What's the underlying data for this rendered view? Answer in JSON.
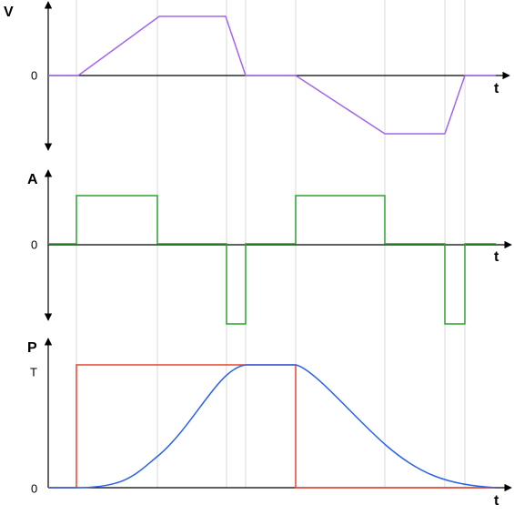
{
  "panels": [
    {
      "axis_label": "V",
      "zero": "0",
      "time": "t"
    },
    {
      "axis_label": "A",
      "zero": "0",
      "time": "t"
    },
    {
      "axis_label": "P",
      "level": "T",
      "zero": "0",
      "time": "t"
    }
  ]
}
